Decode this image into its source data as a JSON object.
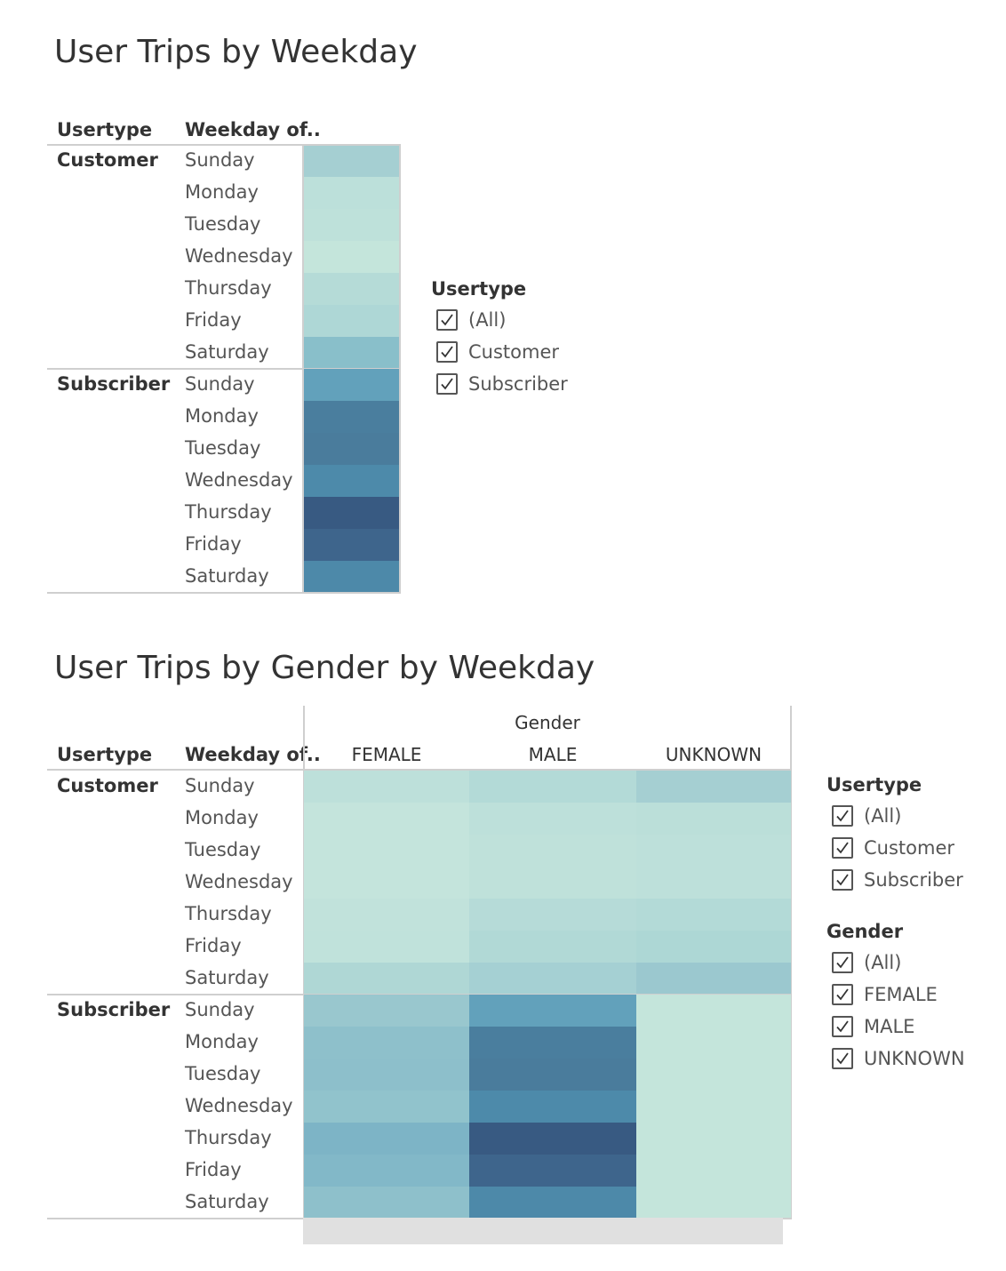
{
  "sheet1": {
    "title": "User Trips by Weekday",
    "headers": {
      "usertype": "Usertype",
      "weekday": "Weekday of.."
    }
  },
  "sheet2": {
    "title": "User Trips by Gender by Weekday",
    "headers": {
      "usertype": "Usertype",
      "weekday": "Weekday of..",
      "gender": "Gender"
    },
    "columns": [
      "FEMALE",
      "MALE",
      "UNKNOWN"
    ]
  },
  "usertypes": [
    "Customer",
    "Subscriber"
  ],
  "weekdays": [
    "Sunday",
    "Monday",
    "Tuesday",
    "Wednesday",
    "Thursday",
    "Friday",
    "Saturday"
  ],
  "filter_usertype": {
    "title": "Usertype",
    "items": [
      {
        "label": "(All)",
        "checked": true
      },
      {
        "label": "Customer",
        "checked": true
      },
      {
        "label": "Subscriber",
        "checked": true
      }
    ]
  },
  "filter_gender": {
    "title": "Gender",
    "items": [
      {
        "label": "(All)",
        "checked": true
      },
      {
        "label": "FEMALE",
        "checked": true
      },
      {
        "label": "MALE",
        "checked": true
      },
      {
        "label": "UNKNOWN",
        "checked": true
      }
    ]
  },
  "chart_data": [
    {
      "type": "heatmap",
      "title": "User Trips by Weekday",
      "rows": [
        "Usertype",
        "Weekday of.."
      ],
      "usertypes": [
        "Customer",
        "Subscriber"
      ],
      "weekdays": [
        "Sunday",
        "Monday",
        "Tuesday",
        "Wednesday",
        "Thursday",
        "Friday",
        "Saturday"
      ],
      "colors": [
        [
          "#a5cfd2",
          "#bce0da",
          "#bee1da",
          "#c4e5db",
          "#b5dbd7",
          "#aed7d6",
          "#89bfca"
        ],
        [
          "#62a1bb",
          "#4a7e9e",
          "#4a7c9c",
          "#4d8aaa",
          "#385a82",
          "#3e658c",
          "#4d89a9"
        ]
      ]
    },
    {
      "type": "heatmap",
      "title": "User Trips by Gender by Weekday",
      "rows": [
        "Usertype",
        "Weekday of.."
      ],
      "columns": [
        "FEMALE",
        "MALE",
        "UNKNOWN"
      ],
      "usertypes": [
        "Customer",
        "Subscriber"
      ],
      "weekdays": [
        "Sunday",
        "Monday",
        "Tuesday",
        "Wednesday",
        "Thursday",
        "Friday",
        "Saturday"
      ],
      "colors": [
        [
          [
            "#bde0da",
            "#b3dad7",
            "#a5cfd2"
          ],
          [
            "#c4e4dc",
            "#bde0da",
            "#bbdfd9"
          ],
          [
            "#c4e4dc",
            "#bfe1da",
            "#bde0da"
          ],
          [
            "#c4e4dc",
            "#bfe1da",
            "#bde0da"
          ],
          [
            "#c1e2db",
            "#b6dbd8",
            "#b3dad7"
          ],
          [
            "#c0e2db",
            "#b1d9d6",
            "#add7d5"
          ],
          [
            "#afd7d5",
            "#a5d0d3",
            "#9bc8cf"
          ]
        ],
        [
          [
            "#99c7ce",
            "#62a1bb",
            "#c4e5db"
          ],
          [
            "#8ec0cb",
            "#4a7e9e",
            "#c4e5db"
          ],
          [
            "#8dbfcb",
            "#4a7c9c",
            "#c4e5db"
          ],
          [
            "#91c3cc",
            "#4d8aaa",
            "#c4e5db"
          ],
          [
            "#7db4c6",
            "#385a82",
            "#c4e5db"
          ],
          [
            "#82b8c8",
            "#3e658c",
            "#c4e5db"
          ],
          [
            "#8ec0cb",
            "#4d89a9",
            "#c4e5db"
          ]
        ]
      ]
    }
  ]
}
